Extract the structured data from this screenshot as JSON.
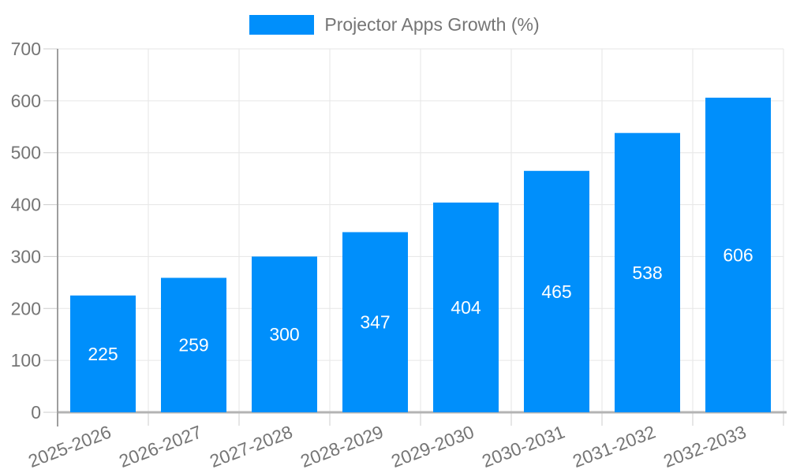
{
  "legend": {
    "label": "Projector Apps Growth (%)"
  },
  "chart_data": {
    "type": "bar",
    "title": "Projector Apps Growth (%)",
    "series_name": "Projector Apps Growth (%)",
    "categories": [
      "2025-2026",
      "2026-2027",
      "2027-2028",
      "2028-2029",
      "2029-2030",
      "2030-2031",
      "2031-2032",
      "2032-2033"
    ],
    "values": [
      225,
      259,
      300,
      347,
      404,
      465,
      538,
      606
    ],
    "value_labels": [
      "225",
      "259",
      "300",
      "347",
      "404",
      "465",
      "538",
      "606"
    ],
    "xlabel": "",
    "ylabel": "",
    "ylim": [
      0,
      700
    ],
    "yticks": [
      0,
      100,
      200,
      300,
      400,
      500,
      600,
      700
    ],
    "ytick_labels": [
      "0",
      "100",
      "200",
      "300",
      "400",
      "500",
      "600",
      "700"
    ],
    "grid": true,
    "legend_position": "top",
    "x_label_rotation_deg": -21,
    "colors": {
      "bar": "#008FFB",
      "bar_value_label": "#ffffff",
      "axis_text": "#757575",
      "gridline": "#e6e6e6",
      "tick": "#cccccc",
      "y_axis_line": "#9e9e9e",
      "baseline": "#b3b3b3",
      "background": "#ffffff"
    }
  }
}
